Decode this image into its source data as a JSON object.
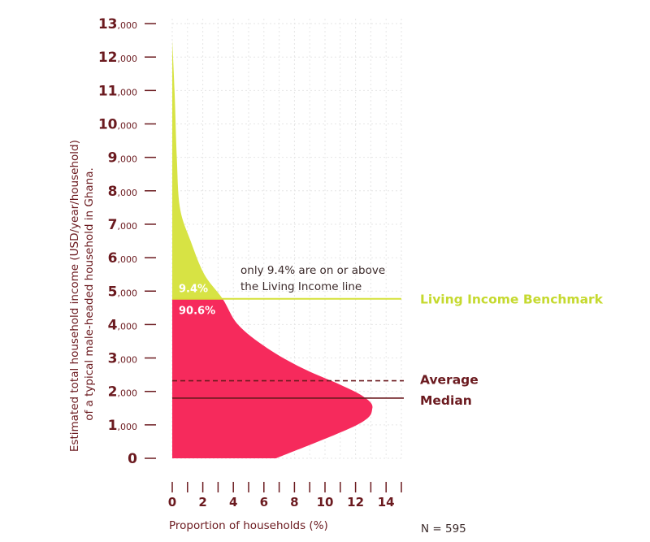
{
  "colors": {
    "above_fill": "#d7e344",
    "below_fill": "#f62a5c",
    "benchmark_line": "#d5e13a",
    "benchmark_label": "#c5d92e",
    "dark": "#6b1a1f",
    "grid": "#e6e6e6"
  },
  "chart_data": {
    "type": "area",
    "orientation": "horizontal-distribution",
    "x_axis": {
      "label": "Proportion of households (%)",
      "range": [
        0,
        15
      ],
      "ticks": [
        0,
        2,
        4,
        6,
        8,
        10,
        12,
        14
      ],
      "minor_ticks": [
        1,
        3,
        5,
        7,
        9,
        11,
        13,
        15
      ]
    },
    "y_axis": {
      "label": "Estimated total household income (USD/year/household) of a typical male-headed household in Ghana.",
      "range": [
        0,
        13000
      ],
      "ticks": [
        {
          "value": 0,
          "major": "0",
          "minor": ""
        },
        {
          "value": 1000,
          "major": "1",
          "minor": ",000"
        },
        {
          "value": 2000,
          "major": "2",
          "minor": ",000"
        },
        {
          "value": 3000,
          "major": "3",
          "minor": ",000"
        },
        {
          "value": 4000,
          "major": "4",
          "minor": ",000"
        },
        {
          "value": 5000,
          "major": "5",
          "minor": ",000"
        },
        {
          "value": 6000,
          "major": "6",
          "minor": ",000"
        },
        {
          "value": 7000,
          "major": "7",
          "minor": ",000"
        },
        {
          "value": 8000,
          "major": "8",
          "minor": ",000"
        },
        {
          "value": 9000,
          "major": "9",
          "minor": ",000"
        },
        {
          "value": 10000,
          "major": "10",
          "minor": ",000"
        },
        {
          "value": 11000,
          "major": "11",
          "minor": ",000"
        },
        {
          "value": 12000,
          "major": "12",
          "minor": ",000"
        },
        {
          "value": 13000,
          "major": "13",
          "minor": ",000"
        }
      ]
    },
    "grid": true,
    "distribution": [
      {
        "income": 0,
        "percent": 6.8
      },
      {
        "income": 1000,
        "percent": 12.1
      },
      {
        "income": 1500,
        "percent": 13.1
      },
      {
        "income": 1850,
        "percent": 12.5
      },
      {
        "income": 2200,
        "percent": 11.0
      },
      {
        "income": 2700,
        "percent": 8.5
      },
      {
        "income": 3300,
        "percent": 6.2
      },
      {
        "income": 4000,
        "percent": 4.3
      },
      {
        "income": 4770,
        "percent": 3.3
      },
      {
        "income": 5500,
        "percent": 2.1
      },
      {
        "income": 6500,
        "percent": 1.2
      },
      {
        "income": 7500,
        "percent": 0.5
      },
      {
        "income": 9000,
        "percent": 0.3
      },
      {
        "income": 11000,
        "percent": 0.15
      },
      {
        "income": 12500,
        "percent": 0
      }
    ],
    "benchmark": {
      "value": 4770,
      "label": "Living Income Benchmark"
    },
    "average": {
      "value": 2320,
      "label": "Average"
    },
    "median": {
      "value": 1800,
      "label": "Median"
    },
    "share_above": "9.4%",
    "share_below": "90.6%",
    "annotation": [
      "only 9.4% are on or above",
      "the Living Income line"
    ],
    "n_label": "N = 595"
  }
}
